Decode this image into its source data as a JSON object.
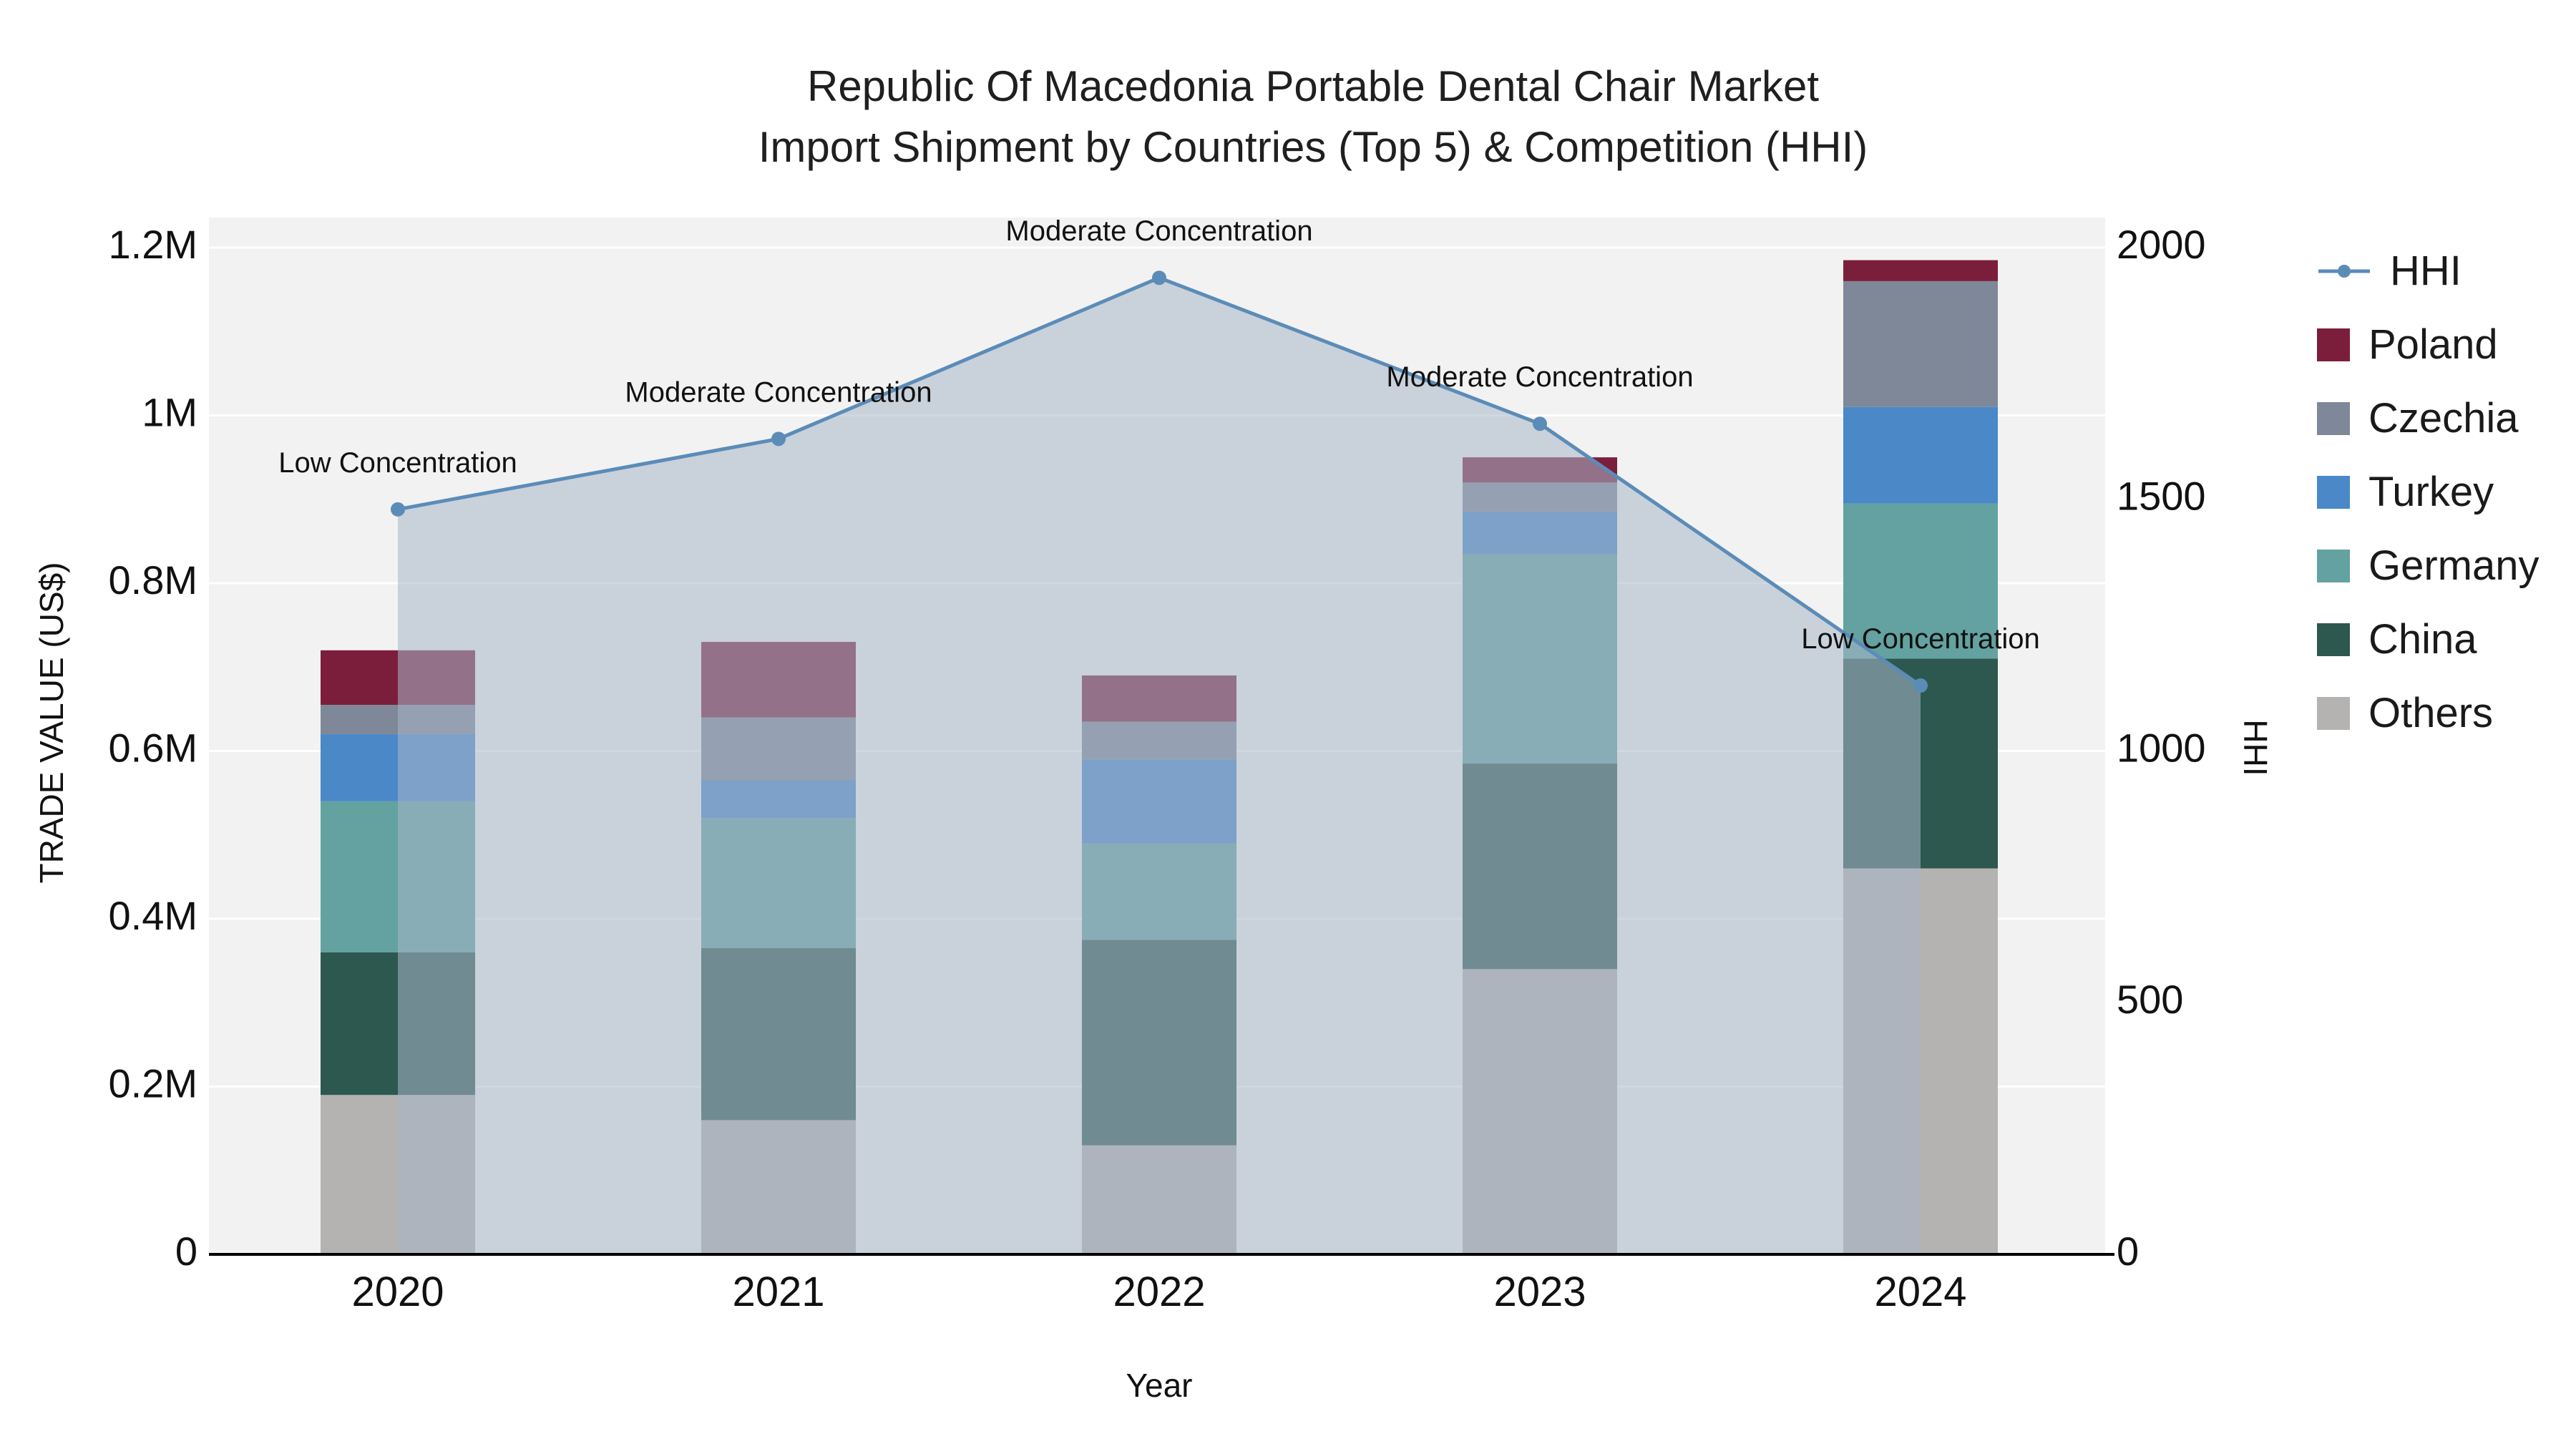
{
  "title": {
    "line1": "Republic Of Macedonia Portable Dental Chair Market",
    "line2": "Import Shipment by Countries (Top 5) & Competition (HHI)"
  },
  "chart_data": {
    "type": "combo_stacked_bar_line",
    "x": [
      "2020",
      "2021",
      "2022",
      "2023",
      "2024"
    ],
    "xlabel": "Year",
    "ylabel_left": "TRADE VALUE (US$)",
    "ylabel_right": "HHI",
    "ylim_left": [
      0,
      1200000
    ],
    "ytick_values_left": [
      0,
      200000,
      400000,
      600000,
      800000,
      1000000,
      1200000
    ],
    "ytick_labels_left": [
      "0",
      "0.2M",
      "0.4M",
      "0.6M",
      "0.8M",
      "1M",
      "1.2M"
    ],
    "ylim_right": [
      0,
      2000
    ],
    "ytick_values_right": [
      0,
      500,
      1000,
      1500,
      2000
    ],
    "ytick_labels_right": [
      "0",
      "500",
      "1000",
      "1500",
      "2000"
    ],
    "grid": true,
    "plot_bg": "#f2f2f2",
    "bar_series": [
      {
        "name": "Others",
        "color": "#b5b2b2",
        "values": [
          190000,
          160000,
          130000,
          340000,
          460000
        ]
      },
      {
        "name": "China",
        "color": "#2d5850",
        "values": [
          170000,
          205000,
          245000,
          245000,
          250000
        ]
      },
      {
        "name": "Germany",
        "color": "#63a2a0",
        "values": [
          180000,
          155000,
          115000,
          250000,
          185000
        ]
      },
      {
        "name": "Turkey",
        "color": "#4a88c8",
        "values": [
          80000,
          45000,
          100000,
          50000,
          115000
        ]
      },
      {
        "name": "Czechia",
        "color": "#7e8898",
        "values": [
          35000,
          75000,
          45000,
          35000,
          150000
        ]
      },
      {
        "name": "Poland",
        "color": "#7b1e3c",
        "values": [
          65000,
          90000,
          55000,
          30000,
          25000
        ]
      }
    ],
    "line_series": {
      "name": "HHI",
      "color": "#5b8cb8",
      "fill_color": "#a8b6c8",
      "fill_opacity": 0.55,
      "values": [
        1480,
        1620,
        1940,
        1650,
        1130
      ]
    },
    "annotations": [
      "Low Concentration",
      "Moderate Concentration",
      "Moderate Concentration",
      "Moderate Concentration",
      "Low Concentration"
    ]
  },
  "legend": {
    "items": [
      {
        "label": "HHI",
        "type": "line",
        "color": "#5b8cb8"
      },
      {
        "label": "Poland",
        "type": "square",
        "color": "#7b1e3c"
      },
      {
        "label": "Czechia",
        "type": "square",
        "color": "#7e8898"
      },
      {
        "label": "Turkey",
        "type": "square",
        "color": "#4a88c8"
      },
      {
        "label": "Germany",
        "type": "square",
        "color": "#63a2a0"
      },
      {
        "label": "China",
        "type": "square",
        "color": "#2d5850"
      },
      {
        "label": "Others",
        "type": "square",
        "color": "#b5b2b2"
      }
    ]
  }
}
